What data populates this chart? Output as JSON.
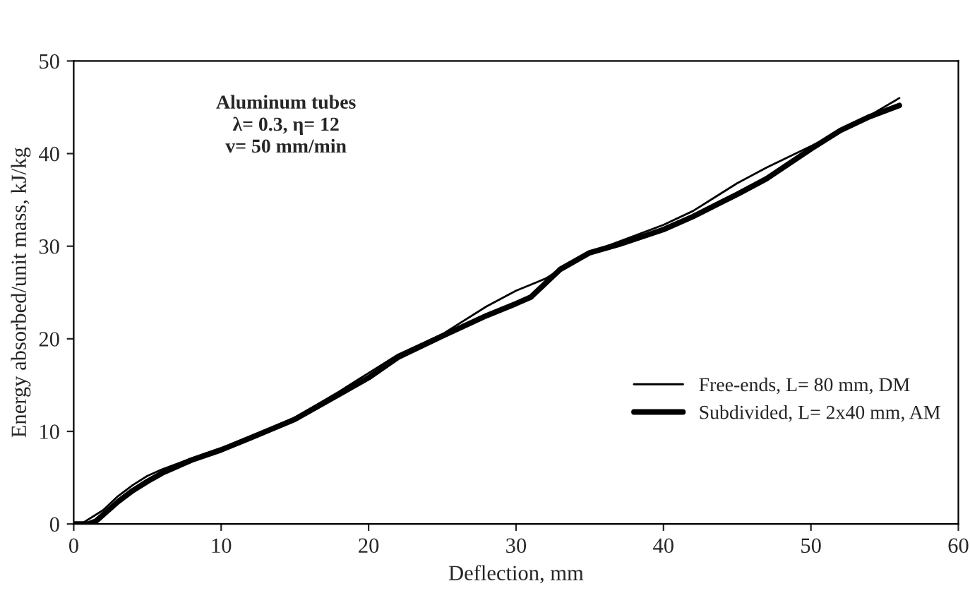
{
  "chart_data": {
    "type": "line",
    "xlabel": "Deflection, mm",
    "ylabel": "Energy absorbed/unit mass, kJ/kg",
    "annotations": [
      "Aluminum tubes\nλ= 0.3, η= 12\nv= 50 mm/min"
    ],
    "xlim": [
      0,
      60
    ],
    "xticks": [
      0,
      10,
      20,
      30,
      40,
      50,
      60
    ],
    "ylim": [
      0,
      50
    ],
    "yticks": [
      0,
      10,
      20,
      30,
      40,
      50
    ],
    "grid": false,
    "legend": "lower right",
    "line_style": "solid",
    "marker": "none",
    "series": [
      {
        "name": "Free-ends, L= 80 mm, DM",
        "color": "#000000",
        "x": [
          0.5,
          2,
          3,
          4,
          5,
          6,
          8,
          10,
          12,
          15,
          18,
          20,
          22,
          25,
          28,
          30,
          32,
          33,
          35,
          37,
          40,
          42,
          45,
          47,
          50,
          53,
          56
        ],
        "values": [
          0,
          1.5,
          3,
          4.2,
          5.2,
          5.9,
          7.1,
          8.2,
          9.4,
          11.5,
          14.3,
          16.3,
          18.3,
          20.5,
          23.5,
          25.2,
          26.5,
          27.5,
          29.3,
          30.5,
          32.3,
          33.8,
          36.8,
          38.5,
          40.8,
          43.2,
          46.0
        ]
      },
      {
        "name": "Subdivided, L= 2x40 mm, AM",
        "color": "#000000",
        "x": [
          0,
          1,
          1.5,
          2,
          3,
          4,
          5,
          6,
          8,
          10,
          12,
          15,
          18,
          20,
          22,
          25,
          28,
          30,
          31,
          32,
          33,
          35,
          37,
          40,
          42,
          45,
          47,
          50,
          52,
          54,
          56
        ],
        "values": [
          0,
          0,
          0.3,
          1.0,
          2.4,
          3.6,
          4.6,
          5.5,
          6.9,
          8.0,
          9.3,
          11.3,
          14.0,
          15.8,
          18.0,
          20.3,
          22.5,
          23.8,
          24.5,
          26.0,
          27.5,
          29.3,
          30.2,
          31.8,
          33.2,
          35.6,
          37.3,
          40.5,
          42.5,
          44.0,
          45.2
        ]
      }
    ]
  }
}
